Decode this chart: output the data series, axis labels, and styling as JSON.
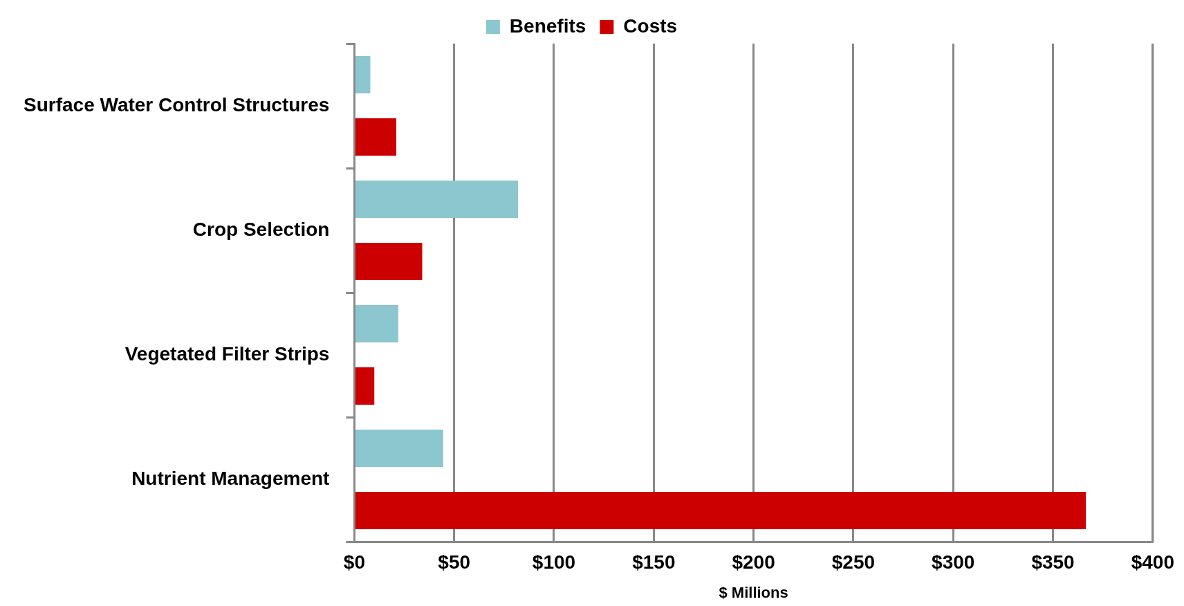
{
  "chart_data": {
    "type": "bar",
    "orientation": "horizontal",
    "xlabel": "$ Millions",
    "categories": [
      "Surface Water Control Structures",
      "Crop Selection",
      "Vegetated Filter Strips",
      "Nutrient Management"
    ],
    "series": [
      {
        "name": "Benefits",
        "color": "#8cc6ce",
        "values": [
          8,
          82,
          22,
          44.5
        ]
      },
      {
        "name": "Costs",
        "color": "#cc0000",
        "values": [
          21,
          34,
          10,
          366.5
        ]
      }
    ],
    "xlim": [
      0,
      400
    ],
    "xticks": [
      {
        "value": 0,
        "label": "$0"
      },
      {
        "value": 50,
        "label": "$50"
      },
      {
        "value": 100,
        "label": "$100"
      },
      {
        "value": 150,
        "label": "$150"
      },
      {
        "value": 200,
        "label": "$200"
      },
      {
        "value": 250,
        "label": "$250"
      },
      {
        "value": 300,
        "label": "$300"
      },
      {
        "value": 350,
        "label": "$350"
      },
      {
        "value": 400,
        "label": "$400"
      }
    ],
    "grid": "x",
    "legend": "top"
  }
}
